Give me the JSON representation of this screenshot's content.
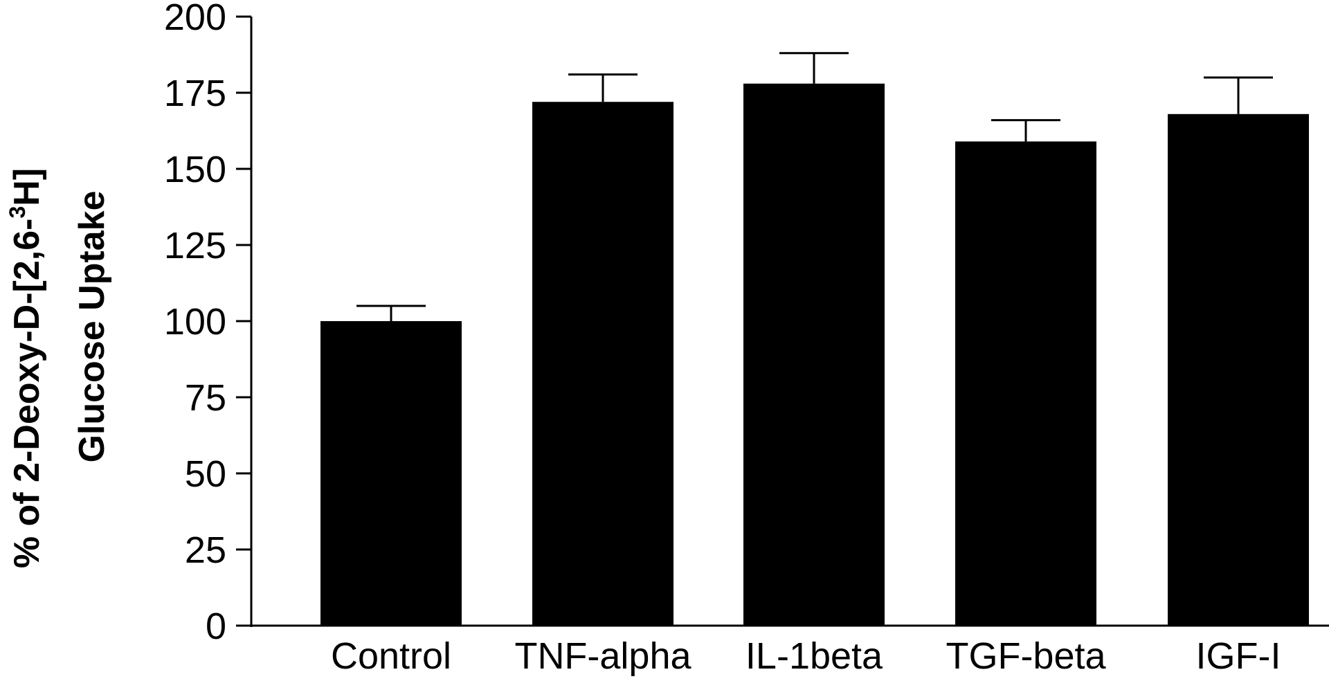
{
  "chart_data": {
    "type": "bar",
    "categories": [
      "Control",
      "TNF-alpha",
      "IL-1beta",
      "TGF-beta",
      "IGF-I"
    ],
    "values": [
      100,
      172,
      178,
      159,
      168
    ],
    "error_upper": [
      105,
      181,
      188,
      166,
      180
    ],
    "ylabel_line1_main": "% of 2-Deoxy-D-[2,6-",
    "ylabel_line1_sup": "3",
    "ylabel_line1_end": "H]",
    "ylabel_line2": "Glucose Uptake",
    "xlabel": "",
    "ylim": [
      0,
      200
    ],
    "yticks": [
      "0",
      "25",
      "50",
      "75",
      "100",
      "125",
      "150",
      "175",
      "200"
    ],
    "bar_color": "#000000",
    "grid": false,
    "legend": "none"
  }
}
